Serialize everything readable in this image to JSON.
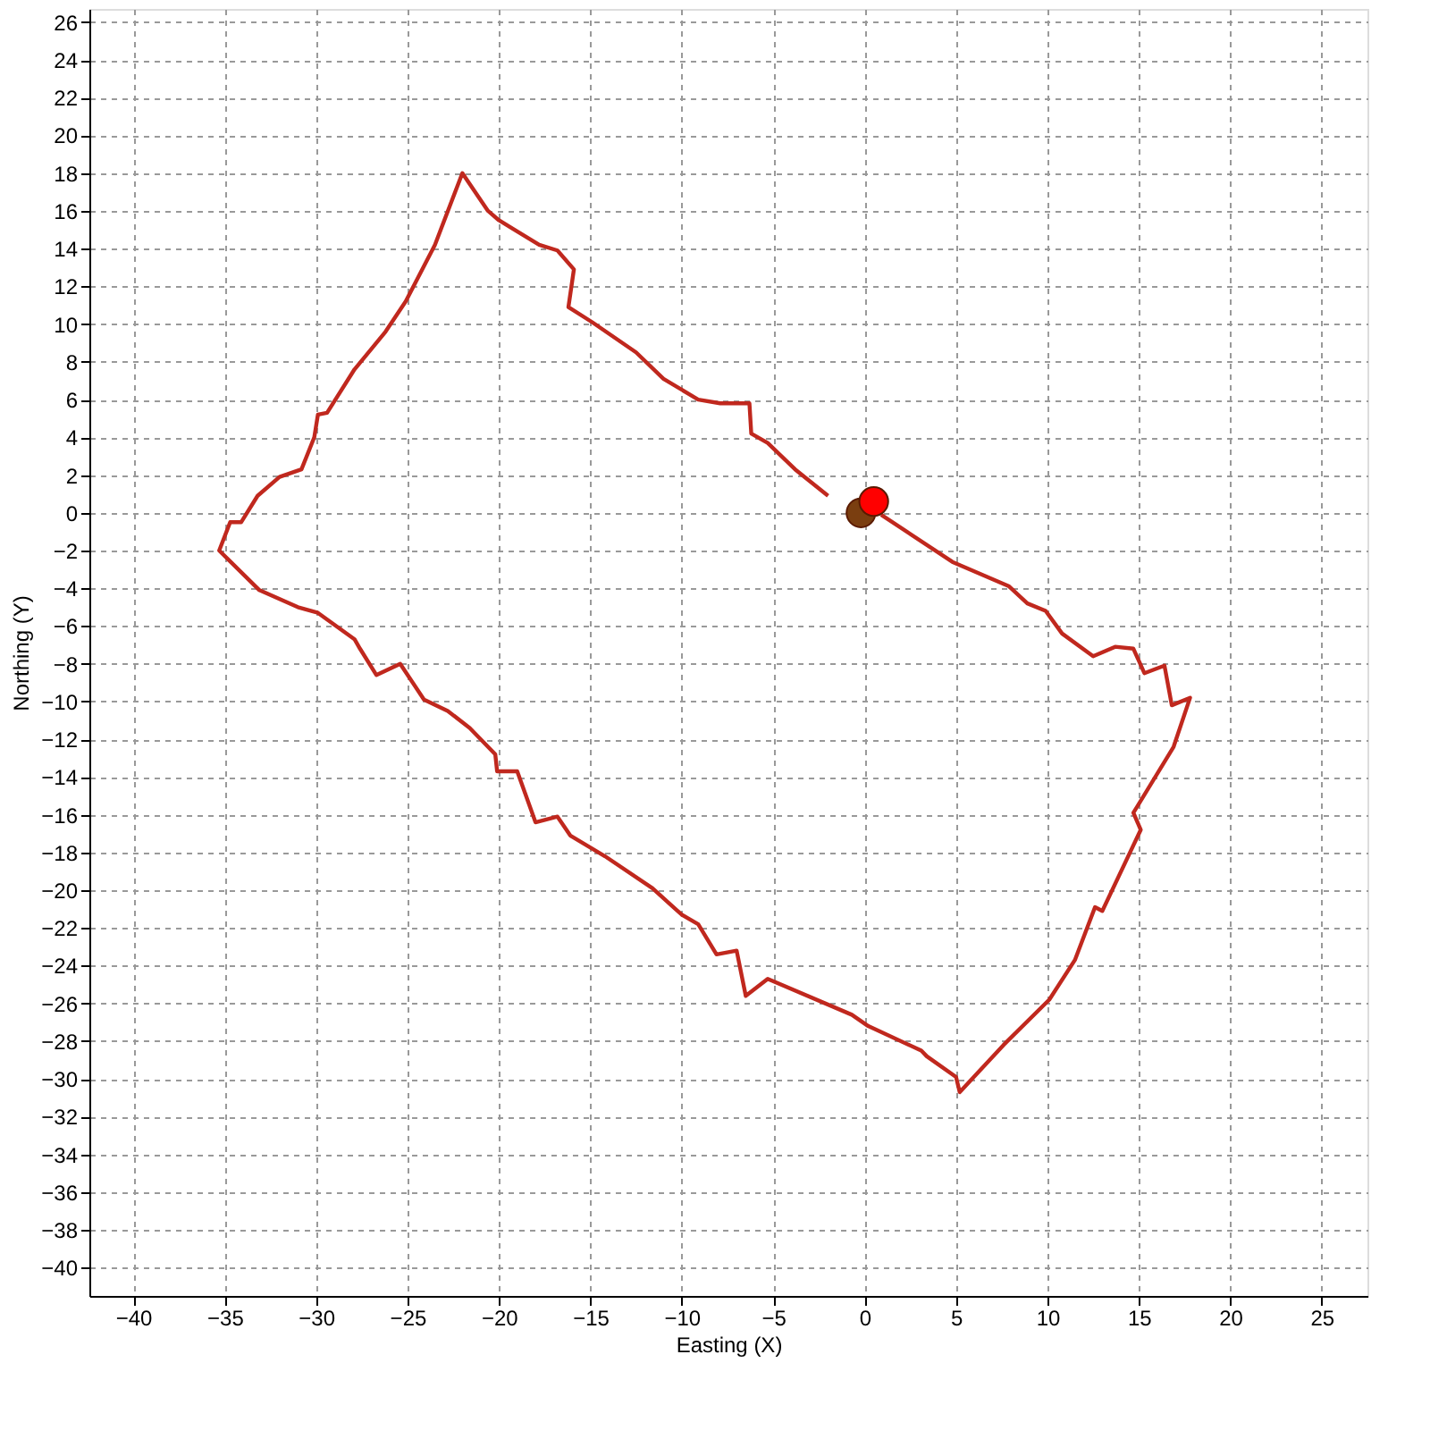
{
  "chart_data": {
    "type": "line",
    "xlabel": "Easting (X)",
    "ylabel": "Northing (Y)",
    "xlim": [
      -42.4,
      27.5
    ],
    "ylim": [
      -41.5,
      26.7
    ],
    "xticks": [
      -40,
      -35,
      -30,
      -25,
      -20,
      -15,
      -10,
      -5,
      0,
      5,
      10,
      15,
      20,
      25
    ],
    "yticks": [
      -40,
      -38,
      -36,
      -34,
      -32,
      -30,
      -28,
      -26,
      -24,
      -22,
      -20,
      -18,
      -16,
      -14,
      -12,
      -10,
      -8,
      -6,
      -4,
      -2,
      0,
      2,
      4,
      6,
      8,
      10,
      12,
      14,
      16,
      18,
      20,
      22,
      24,
      26
    ],
    "grid": true,
    "line_style": "solid",
    "series": [
      {
        "color": "#c0281e",
        "marker": "none",
        "x": [
          0.9,
          4.8,
          7.9,
          8.9,
          9.9,
          10.8,
          12.5,
          13.7,
          14.7,
          15.3,
          16.4,
          16.8,
          17.8,
          16.9,
          14.7,
          15.1,
          13.0,
          12.6,
          11.5,
          10.1,
          7.6,
          5.2,
          5.0,
          3.4,
          3.1,
          0.2,
          -0.7,
          -5.3,
          -6.5,
          -7.0,
          -8.1,
          -9.1,
          -10.0,
          -11.6,
          -14.2,
          -16.1,
          -16.8,
          -18.0,
          -19.0,
          -20.1,
          -20.2,
          -21.6,
          -22.8,
          -24.1,
          -25.4,
          -26.7,
          -27.6,
          -27.9,
          -29.9,
          -31.0,
          -33.1,
          -35.3,
          -34.7,
          -34.1,
          -33.2,
          -32.0,
          -30.8,
          -30.1,
          -29.9,
          -29.4,
          -27.9,
          -26.2,
          -25.1,
          -23.5,
          -22.0,
          -20.6,
          -20.0,
          -17.8,
          -16.8,
          -15.9,
          -16.2,
          -14.9,
          -12.5,
          -11.0,
          -9.1,
          -7.9,
          -6.3,
          -6.2,
          -5.3,
          -3.8,
          -2.0
        ],
        "values": [
          -0.1,
          -2.6,
          -3.9,
          -4.8,
          -5.2,
          -6.4,
          -7.6,
          -7.1,
          -7.2,
          -8.5,
          -8.1,
          -10.2,
          -9.8,
          -12.4,
          -15.9,
          -16.8,
          -21.1,
          -20.9,
          -23.7,
          -25.8,
          -28.2,
          -30.7,
          -29.9,
          -28.8,
          -28.5,
          -27.2,
          -26.6,
          -24.7,
          -25.6,
          -23.2,
          -23.4,
          -21.8,
          -21.3,
          -19.9,
          -18.2,
          -17.1,
          -16.1,
          -16.4,
          -13.7,
          -13.7,
          -12.8,
          -11.4,
          -10.5,
          -9.9,
          -8.0,
          -8.6,
          -7.2,
          -6.7,
          -5.3,
          -5.0,
          -4.1,
          -2.0,
          -0.5,
          -0.5,
          0.9,
          1.9,
          2.3,
          4.0,
          5.2,
          5.3,
          7.6,
          9.6,
          11.2,
          14.2,
          18.0,
          16.0,
          15.5,
          14.2,
          13.9,
          12.9,
          10.9,
          10.1,
          8.5,
          7.1,
          6.0,
          5.8,
          5.8,
          4.2,
          3.7,
          2.3,
          0.9
        ]
      },
      {
        "type": "scatter",
        "color": "#7a3e10",
        "marker": "circle",
        "x": [
          -0.2
        ],
        "values": [
          0.0
        ]
      },
      {
        "type": "scatter",
        "color": "#ff0000",
        "marker": "circle",
        "x": [
          0.5
        ],
        "values": [
          0.6
        ]
      }
    ]
  }
}
